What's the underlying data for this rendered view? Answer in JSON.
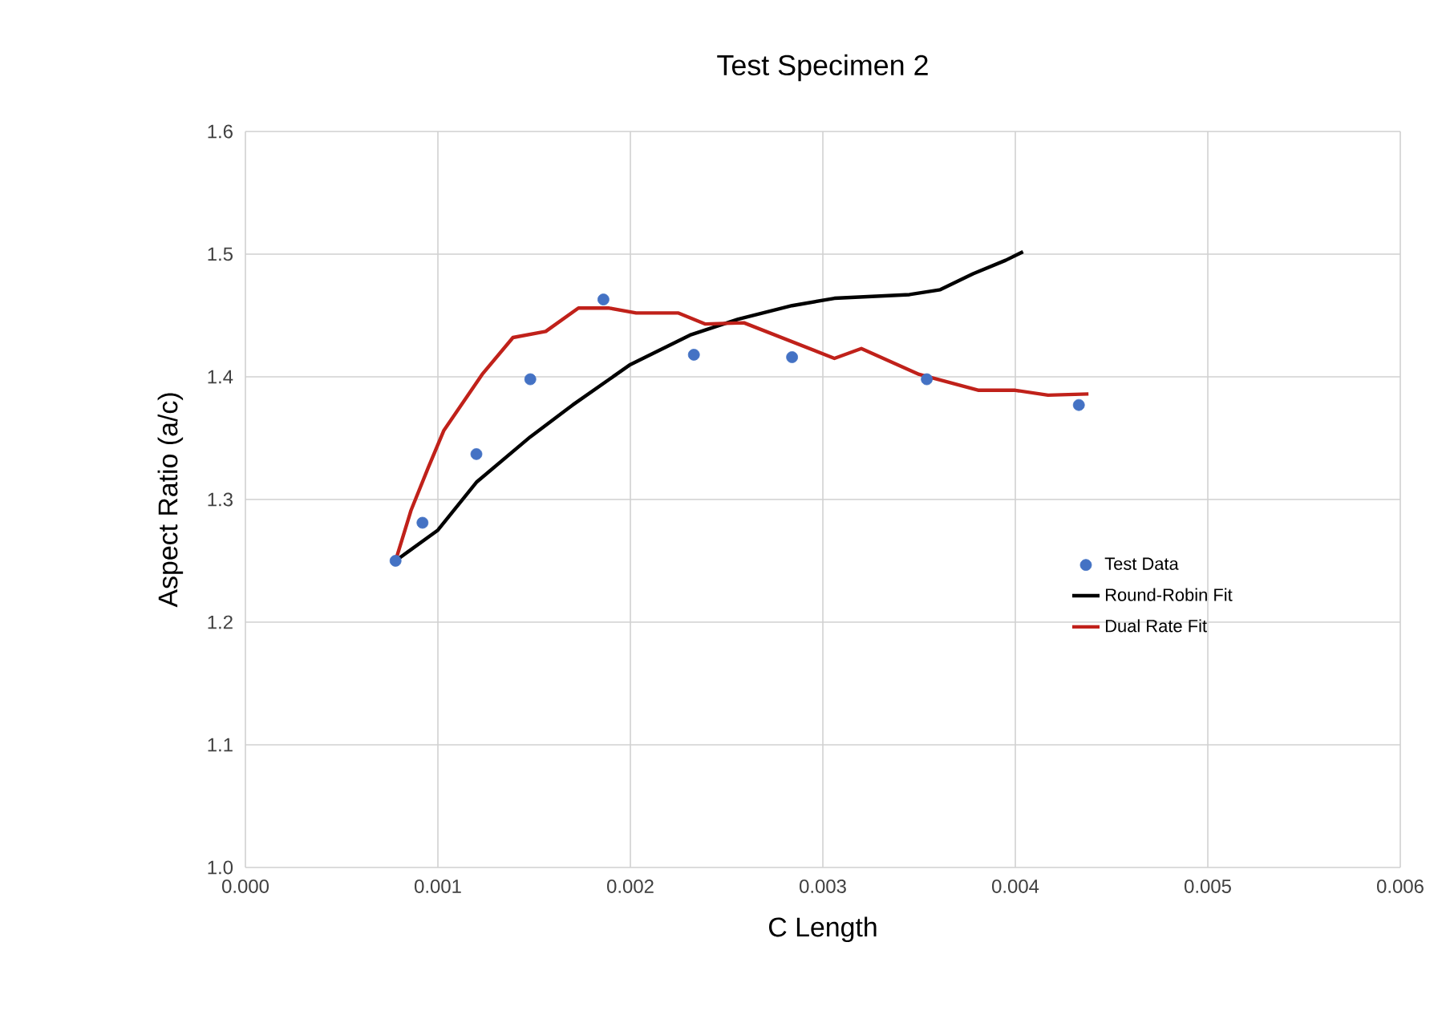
{
  "chart_data": {
    "type": "line",
    "title": "Test Specimen 2",
    "xlabel": "C Length",
    "ylabel": "Aspect Ratio (a/c)",
    "xlim": [
      0,
      0.006
    ],
    "ylim": [
      1.0,
      1.6
    ],
    "xticks": [
      {
        "value": 0,
        "label": "0.000"
      },
      {
        "value": 0.001,
        "label": "0.001"
      },
      {
        "value": 0.002,
        "label": "0.002"
      },
      {
        "value": 0.003,
        "label": "0.003"
      },
      {
        "value": 0.004,
        "label": "0.004"
      },
      {
        "value": 0.005,
        "label": "0.005"
      },
      {
        "value": 0.006,
        "label": "0.006"
      }
    ],
    "yticks": [
      {
        "value": 1.0,
        "label": "1.0"
      },
      1.1,
      1.2,
      1.3,
      1.4,
      1.5,
      1.6
    ],
    "grid": true,
    "legend": "right",
    "series": [
      {
        "name": "Test Data",
        "type": "scatter",
        "color": "#4472c4",
        "x": [
          0.00078,
          0.00092,
          0.0012,
          0.00148,
          0.00186,
          0.00233,
          0.00284,
          0.00354,
          0.00433
        ],
        "values": [
          1.25,
          1.281,
          1.337,
          1.398,
          1.463,
          1.418,
          1.416,
          1.398,
          1.377
        ]
      },
      {
        "name": "Round-Robin Fit",
        "color": "#000000",
        "x": [
          0.00078,
          0.001,
          0.0012,
          0.00148,
          0.0017,
          0.002,
          0.00231,
          0.00256,
          0.00284,
          0.00306,
          0.00345,
          0.00361,
          0.00378,
          0.00395,
          0.00404
        ],
        "values": [
          1.25,
          1.275,
          1.314,
          1.351,
          1.377,
          1.41,
          1.434,
          1.447,
          1.458,
          1.464,
          1.467,
          1.471,
          1.484,
          1.495,
          1.502
        ]
      },
      {
        "name": "Dual Rate Fit",
        "color": "#c0211a",
        "x": [
          0.00078,
          0.00086,
          0.00095,
          0.00103,
          0.00123,
          0.00139,
          0.00156,
          0.00173,
          0.00189,
          0.00203,
          0.00225,
          0.00239,
          0.00259,
          0.00306,
          0.0032,
          0.0035,
          0.00381,
          0.004,
          0.00417,
          0.00438
        ],
        "values": [
          1.25,
          1.291,
          1.326,
          1.356,
          1.402,
          1.432,
          1.437,
          1.456,
          1.456,
          1.452,
          1.452,
          1.443,
          1.444,
          1.415,
          1.423,
          1.402,
          1.389,
          1.389,
          1.385,
          1.386
        ]
      }
    ]
  }
}
